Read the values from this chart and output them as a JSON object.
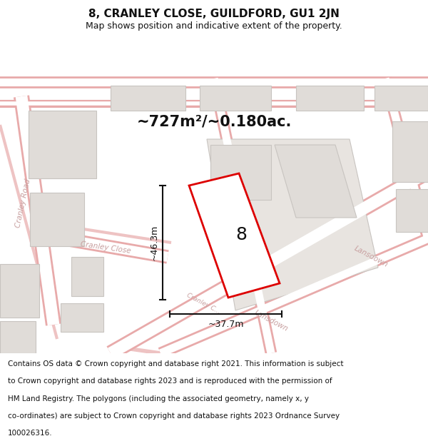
{
  "title": "8, CRANLEY CLOSE, GUILDFORD, GU1 2JN",
  "subtitle": "Map shows position and indicative extent of the property.",
  "area_text": "~727m²/~0.180ac.",
  "label_number": "8",
  "dim_width": "~37.7m",
  "dim_height": "~46.3m",
  "footer_lines": [
    "Contains OS data © Crown copyright and database right 2021. This information is subject",
    "to Crown copyright and database rights 2023 and is reproduced with the permission of",
    "HM Land Registry. The polygons (including the associated geometry, namely x, y",
    "co-ordinates) are subject to Crown copyright and database rights 2023 Ordnance Survey",
    "100026316."
  ],
  "bg_color": "#f2eeea",
  "title_bg": "#ffffff",
  "footer_bg": "#ffffff",
  "road_fill": "#ffffff",
  "road_edge": "#e8aaaa",
  "building_edge": "#c8c4c0",
  "building_fill": "#e0dcd8",
  "prop_edge": "#dd0000",
  "prop_fill": "#ffffff",
  "road_label_color": "#c8a0a0",
  "dim_color": "#111111",
  "title_fontsize": 11,
  "subtitle_fontsize": 9,
  "area_fontsize": 15,
  "label_fontsize": 18,
  "dim_fontsize": 9,
  "road_label_fontsize": 7.5,
  "footer_fontsize": 7.5
}
